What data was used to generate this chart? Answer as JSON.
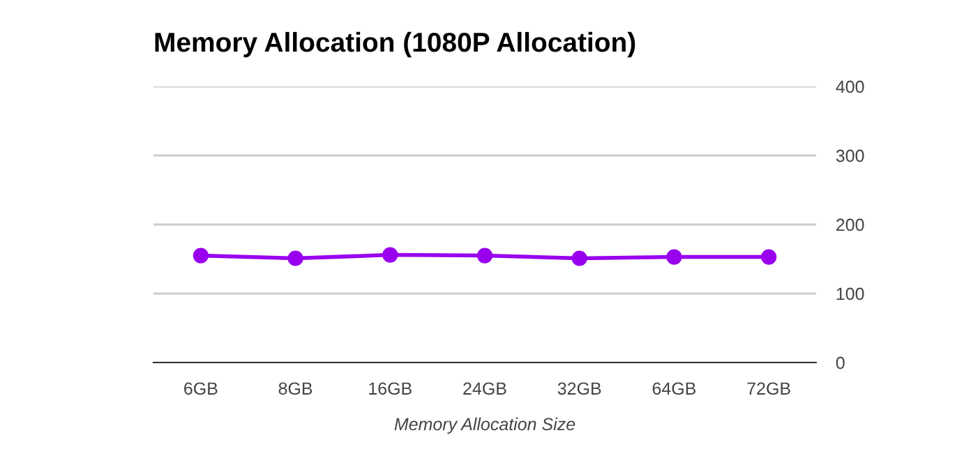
{
  "chart_data": {
    "type": "line",
    "title": "Memory Allocation (1080P Allocation)",
    "xlabel": "Memory Allocation Size",
    "categories": [
      "6GB",
      "8GB",
      "16GB",
      "24GB",
      "32GB",
      "64GB",
      "72GB"
    ],
    "series": [
      {
        "color": "#9900ee",
        "values": [
          155,
          151,
          156,
          155,
          151,
          153,
          153
        ]
      }
    ],
    "ylim": [
      0,
      400
    ],
    "yticks": [
      0,
      100,
      200,
      300,
      400
    ],
    "grid": "y",
    "marker": "circle",
    "line_style": "solid"
  }
}
